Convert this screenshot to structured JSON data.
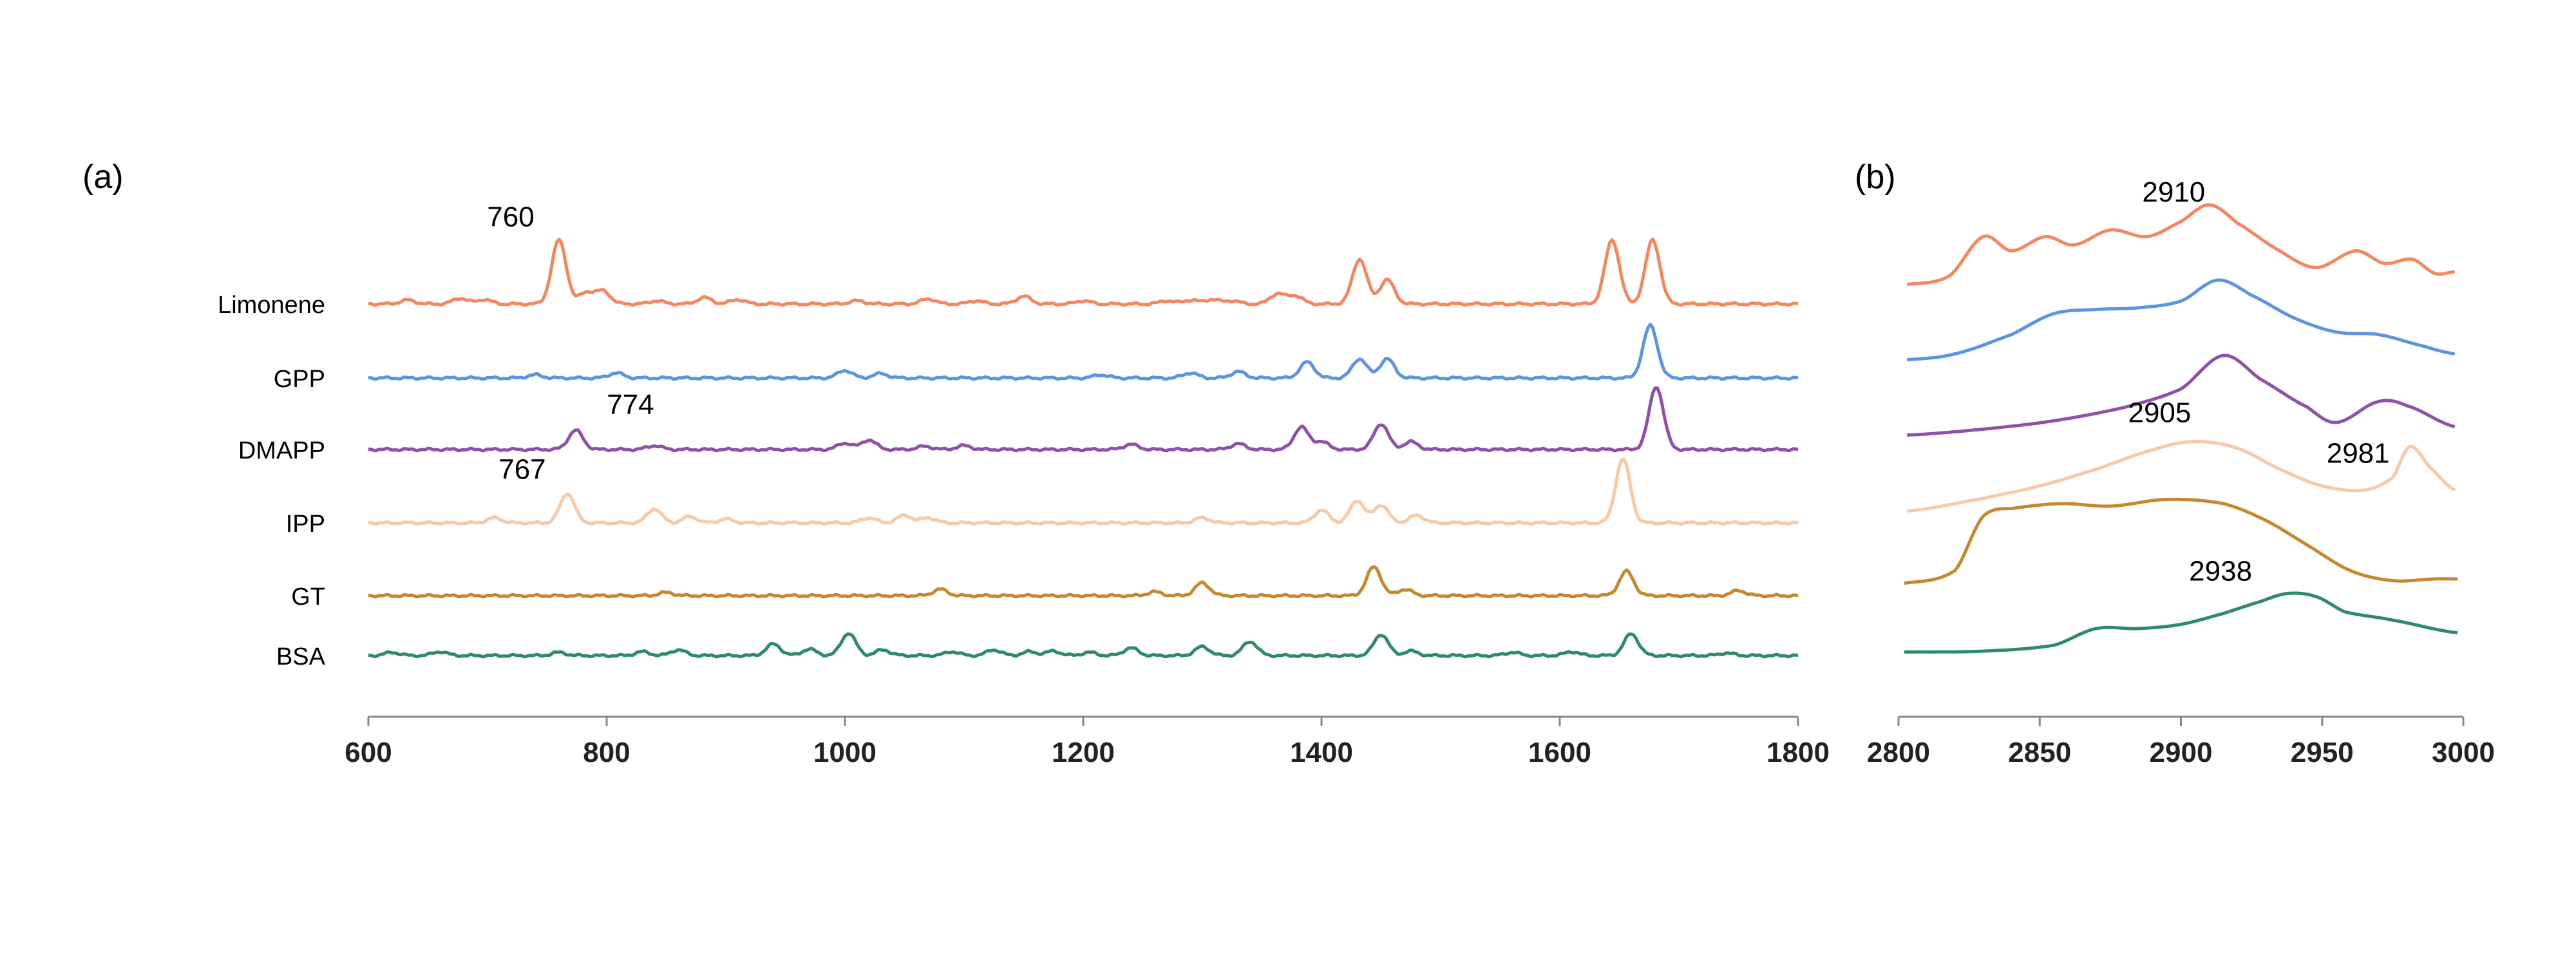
{
  "chart_data": [
    {
      "panel": "(a)",
      "type": "line",
      "xlim": [
        600,
        1800
      ],
      "xticks": [
        600,
        800,
        1000,
        1200,
        1400,
        1600,
        1800
      ],
      "xtick_labels": [
        "600",
        "800",
        "1000",
        "1200",
        "1400",
        "1600",
        "1800"
      ],
      "grid": false,
      "series": [
        {
          "name": "Limonene",
          "color": "#F4875E",
          "peaks": [
            [
              633,
              0.06
            ],
            [
              677,
              0.09
            ],
            [
              697,
              0.07
            ],
            [
              760,
              1.0
            ],
            [
              783,
              0.18
            ],
            [
              797,
              0.2
            ],
            [
              842,
              0.05
            ],
            [
              882,
              0.1
            ],
            [
              910,
              0.07
            ],
            [
              1010,
              0.05
            ],
            [
              1070,
              0.08
            ],
            [
              1110,
              0.05
            ],
            [
              1150,
              0.12
            ],
            [
              1200,
              0.05
            ],
            [
              1270,
              0.05
            ],
            [
              1290,
              0.06
            ],
            [
              1308,
              0.07
            ],
            [
              1325,
              0.05
            ],
            [
              1363,
              0.16
            ],
            [
              1378,
              0.13
            ],
            [
              1432,
              0.7
            ],
            [
              1455,
              0.38
            ],
            [
              1644,
              1.0
            ],
            [
              1678,
              1.0
            ]
          ]
        },
        {
          "name": "GPP",
          "color": "#5B95E0",
          "peaks": [
            [
              740,
              0.05
            ],
            [
              808,
              0.08
            ],
            [
              1000,
              0.12
            ],
            [
              1030,
              0.07
            ],
            [
              1215,
              0.05
            ],
            [
              1290,
              0.08
            ],
            [
              1330,
              0.1
            ],
            [
              1388,
              0.25
            ],
            [
              1432,
              0.3
            ],
            [
              1455,
              0.3
            ],
            [
              1676,
              0.82
            ]
          ]
        },
        {
          "name": "DMAPP",
          "color": "#9050A8",
          "peaks": [
            [
              774,
              0.3
            ],
            [
              840,
              0.06
            ],
            [
              1000,
              0.1
            ],
            [
              1020,
              0.15
            ],
            [
              1067,
              0.05
            ],
            [
              1100,
              0.06
            ],
            [
              1240,
              0.08
            ],
            [
              1330,
              0.09
            ],
            [
              1383,
              0.35
            ],
            [
              1400,
              0.12
            ],
            [
              1450,
              0.4
            ],
            [
              1475,
              0.12
            ],
            [
              1681,
              0.98
            ]
          ]
        },
        {
          "name": "IPP",
          "color": "#F8C9A8",
          "peaks": [
            [
              706,
              0.08
            ],
            [
              767,
              0.46
            ],
            [
              840,
              0.22
            ],
            [
              870,
              0.1
            ],
            [
              900,
              0.06
            ],
            [
              1020,
              0.08
            ],
            [
              1050,
              0.12
            ],
            [
              1070,
              0.08
            ],
            [
              1300,
              0.08
            ],
            [
              1400,
              0.2
            ],
            [
              1430,
              0.35
            ],
            [
              1450,
              0.28
            ],
            [
              1480,
              0.12
            ],
            [
              1653,
              1.0
            ]
          ]
        },
        {
          "name": "GT",
          "color": "#C8872F",
          "peaks": [
            [
              850,
              0.05
            ],
            [
              1080,
              0.1
            ],
            [
              1260,
              0.06
            ],
            [
              1300,
              0.2
            ],
            [
              1444,
              0.45
            ],
            [
              1470,
              0.1
            ],
            [
              1656,
              0.38
            ],
            [
              1750,
              0.08
            ]
          ]
        },
        {
          "name": "BSA",
          "color": "#2E8B6A",
          "peaks": [
            [
              620,
              0.05
            ],
            [
              660,
              0.06
            ],
            [
              760,
              0.05
            ],
            [
              830,
              0.06
            ],
            [
              860,
              0.09
            ],
            [
              940,
              0.18
            ],
            [
              970,
              0.1
            ],
            [
              1003,
              0.35
            ],
            [
              1032,
              0.09
            ],
            [
              1090,
              0.06
            ],
            [
              1125,
              0.09
            ],
            [
              1155,
              0.06
            ],
            [
              1175,
              0.07
            ],
            [
              1205,
              0.05
            ],
            [
              1240,
              0.12
            ],
            [
              1300,
              0.14
            ],
            [
              1340,
              0.22
            ],
            [
              1450,
              0.33
            ],
            [
              1475,
              0.07
            ],
            [
              1560,
              0.05
            ],
            [
              1610,
              0.06
            ],
            [
              1660,
              0.34
            ],
            [
              1740,
              0.04
            ]
          ]
        }
      ],
      "annotations": [
        {
          "text": "760",
          "series": "Limonene",
          "x": 760
        },
        {
          "text": "774",
          "series": "DMAPP",
          "x": 774
        },
        {
          "text": "767",
          "series": "IPP",
          "x": 767
        }
      ]
    },
    {
      "panel": "(b)",
      "type": "line",
      "xlim": [
        2800,
        3000
      ],
      "xticks": [
        2800,
        2850,
        2900,
        2950,
        3000
      ],
      "xtick_labels": [
        "2800",
        "2850",
        "2900",
        "2950",
        "3000"
      ],
      "grid": false,
      "series": [
        {
          "name": "Limonene",
          "color": "#F4875E",
          "points": [
            [
              2803,
              0.05
            ],
            [
              2818,
              0.15
            ],
            [
              2830,
              0.62
            ],
            [
              2840,
              0.45
            ],
            [
              2852,
              0.62
            ],
            [
              2862,
              0.52
            ],
            [
              2875,
              0.7
            ],
            [
              2888,
              0.62
            ],
            [
              2900,
              0.8
            ],
            [
              2910,
              1.0
            ],
            [
              2920,
              0.78
            ],
            [
              2935,
              0.45
            ],
            [
              2948,
              0.25
            ],
            [
              2962,
              0.45
            ],
            [
              2972,
              0.3
            ],
            [
              2982,
              0.35
            ],
            [
              2990,
              0.18
            ],
            [
              2997,
              0.2
            ]
          ]
        },
        {
          "name": "GPP",
          "color": "#5B95E0",
          "points": [
            [
              2803,
              0.05
            ],
            [
              2820,
              0.12
            ],
            [
              2840,
              0.35
            ],
            [
              2855,
              0.6
            ],
            [
              2870,
              0.65
            ],
            [
              2885,
              0.67
            ],
            [
              2900,
              0.75
            ],
            [
              2913,
              1.0
            ],
            [
              2925,
              0.82
            ],
            [
              2940,
              0.55
            ],
            [
              2955,
              0.38
            ],
            [
              2970,
              0.35
            ],
            [
              2985,
              0.22
            ],
            [
              2997,
              0.12
            ]
          ]
        },
        {
          "name": "DMAPP",
          "color": "#9050A8",
          "points": [
            [
              2803,
              0.05
            ],
            [
              2830,
              0.12
            ],
            [
              2855,
              0.22
            ],
            [
              2880,
              0.38
            ],
            [
              2900,
              0.6
            ],
            [
              2915,
              1.0
            ],
            [
              2928,
              0.72
            ],
            [
              2945,
              0.38
            ],
            [
              2955,
              0.2
            ],
            [
              2970,
              0.45
            ],
            [
              2980,
              0.4
            ],
            [
              2997,
              0.15
            ]
          ]
        },
        {
          "name": "IPP",
          "color": "#F8C9A8",
          "points": [
            [
              2803,
              0.05
            ],
            [
              2830,
              0.2
            ],
            [
              2850,
              0.35
            ],
            [
              2870,
              0.55
            ],
            [
              2890,
              0.78
            ],
            [
              2905,
              0.88
            ],
            [
              2920,
              0.8
            ],
            [
              2935,
              0.55
            ],
            [
              2950,
              0.35
            ],
            [
              2965,
              0.3
            ],
            [
              2975,
              0.45
            ],
            [
              2981,
              0.82
            ],
            [
              2988,
              0.58
            ],
            [
              2997,
              0.3
            ]
          ]
        },
        {
          "name": "GT",
          "color": "#C8872F",
          "points": [
            [
              2802,
              0.05
            ],
            [
              2820,
              0.2
            ],
            [
              2830,
              0.85
            ],
            [
              2842,
              0.95
            ],
            [
              2858,
              1.0
            ],
            [
              2875,
              0.97
            ],
            [
              2895,
              1.05
            ],
            [
              2915,
              1.0
            ],
            [
              2930,
              0.8
            ],
            [
              2945,
              0.5
            ],
            [
              2960,
              0.2
            ],
            [
              2975,
              0.08
            ],
            [
              2990,
              0.1
            ],
            [
              2998,
              0.1
            ]
          ]
        },
        {
          "name": "BSA",
          "color": "#2E8B6A",
          "points": [
            [
              2802,
              0.02
            ],
            [
              2830,
              0.03
            ],
            [
              2855,
              0.1
            ],
            [
              2870,
              0.3
            ],
            [
              2885,
              0.3
            ],
            [
              2900,
              0.35
            ],
            [
              2915,
              0.48
            ],
            [
              2928,
              0.62
            ],
            [
              2938,
              0.72
            ],
            [
              2948,
              0.68
            ],
            [
              2958,
              0.5
            ],
            [
              2975,
              0.4
            ],
            [
              2998,
              0.25
            ]
          ]
        }
      ],
      "annotations": [
        {
          "text": "2910",
          "series": "Limonene",
          "x": 2910
        },
        {
          "text": "2905",
          "series": "IPP",
          "x": 2905
        },
        {
          "text": "2981",
          "series": "IPP",
          "x": 2981
        },
        {
          "text": "2938",
          "series": "BSA",
          "x": 2938
        }
      ]
    }
  ]
}
